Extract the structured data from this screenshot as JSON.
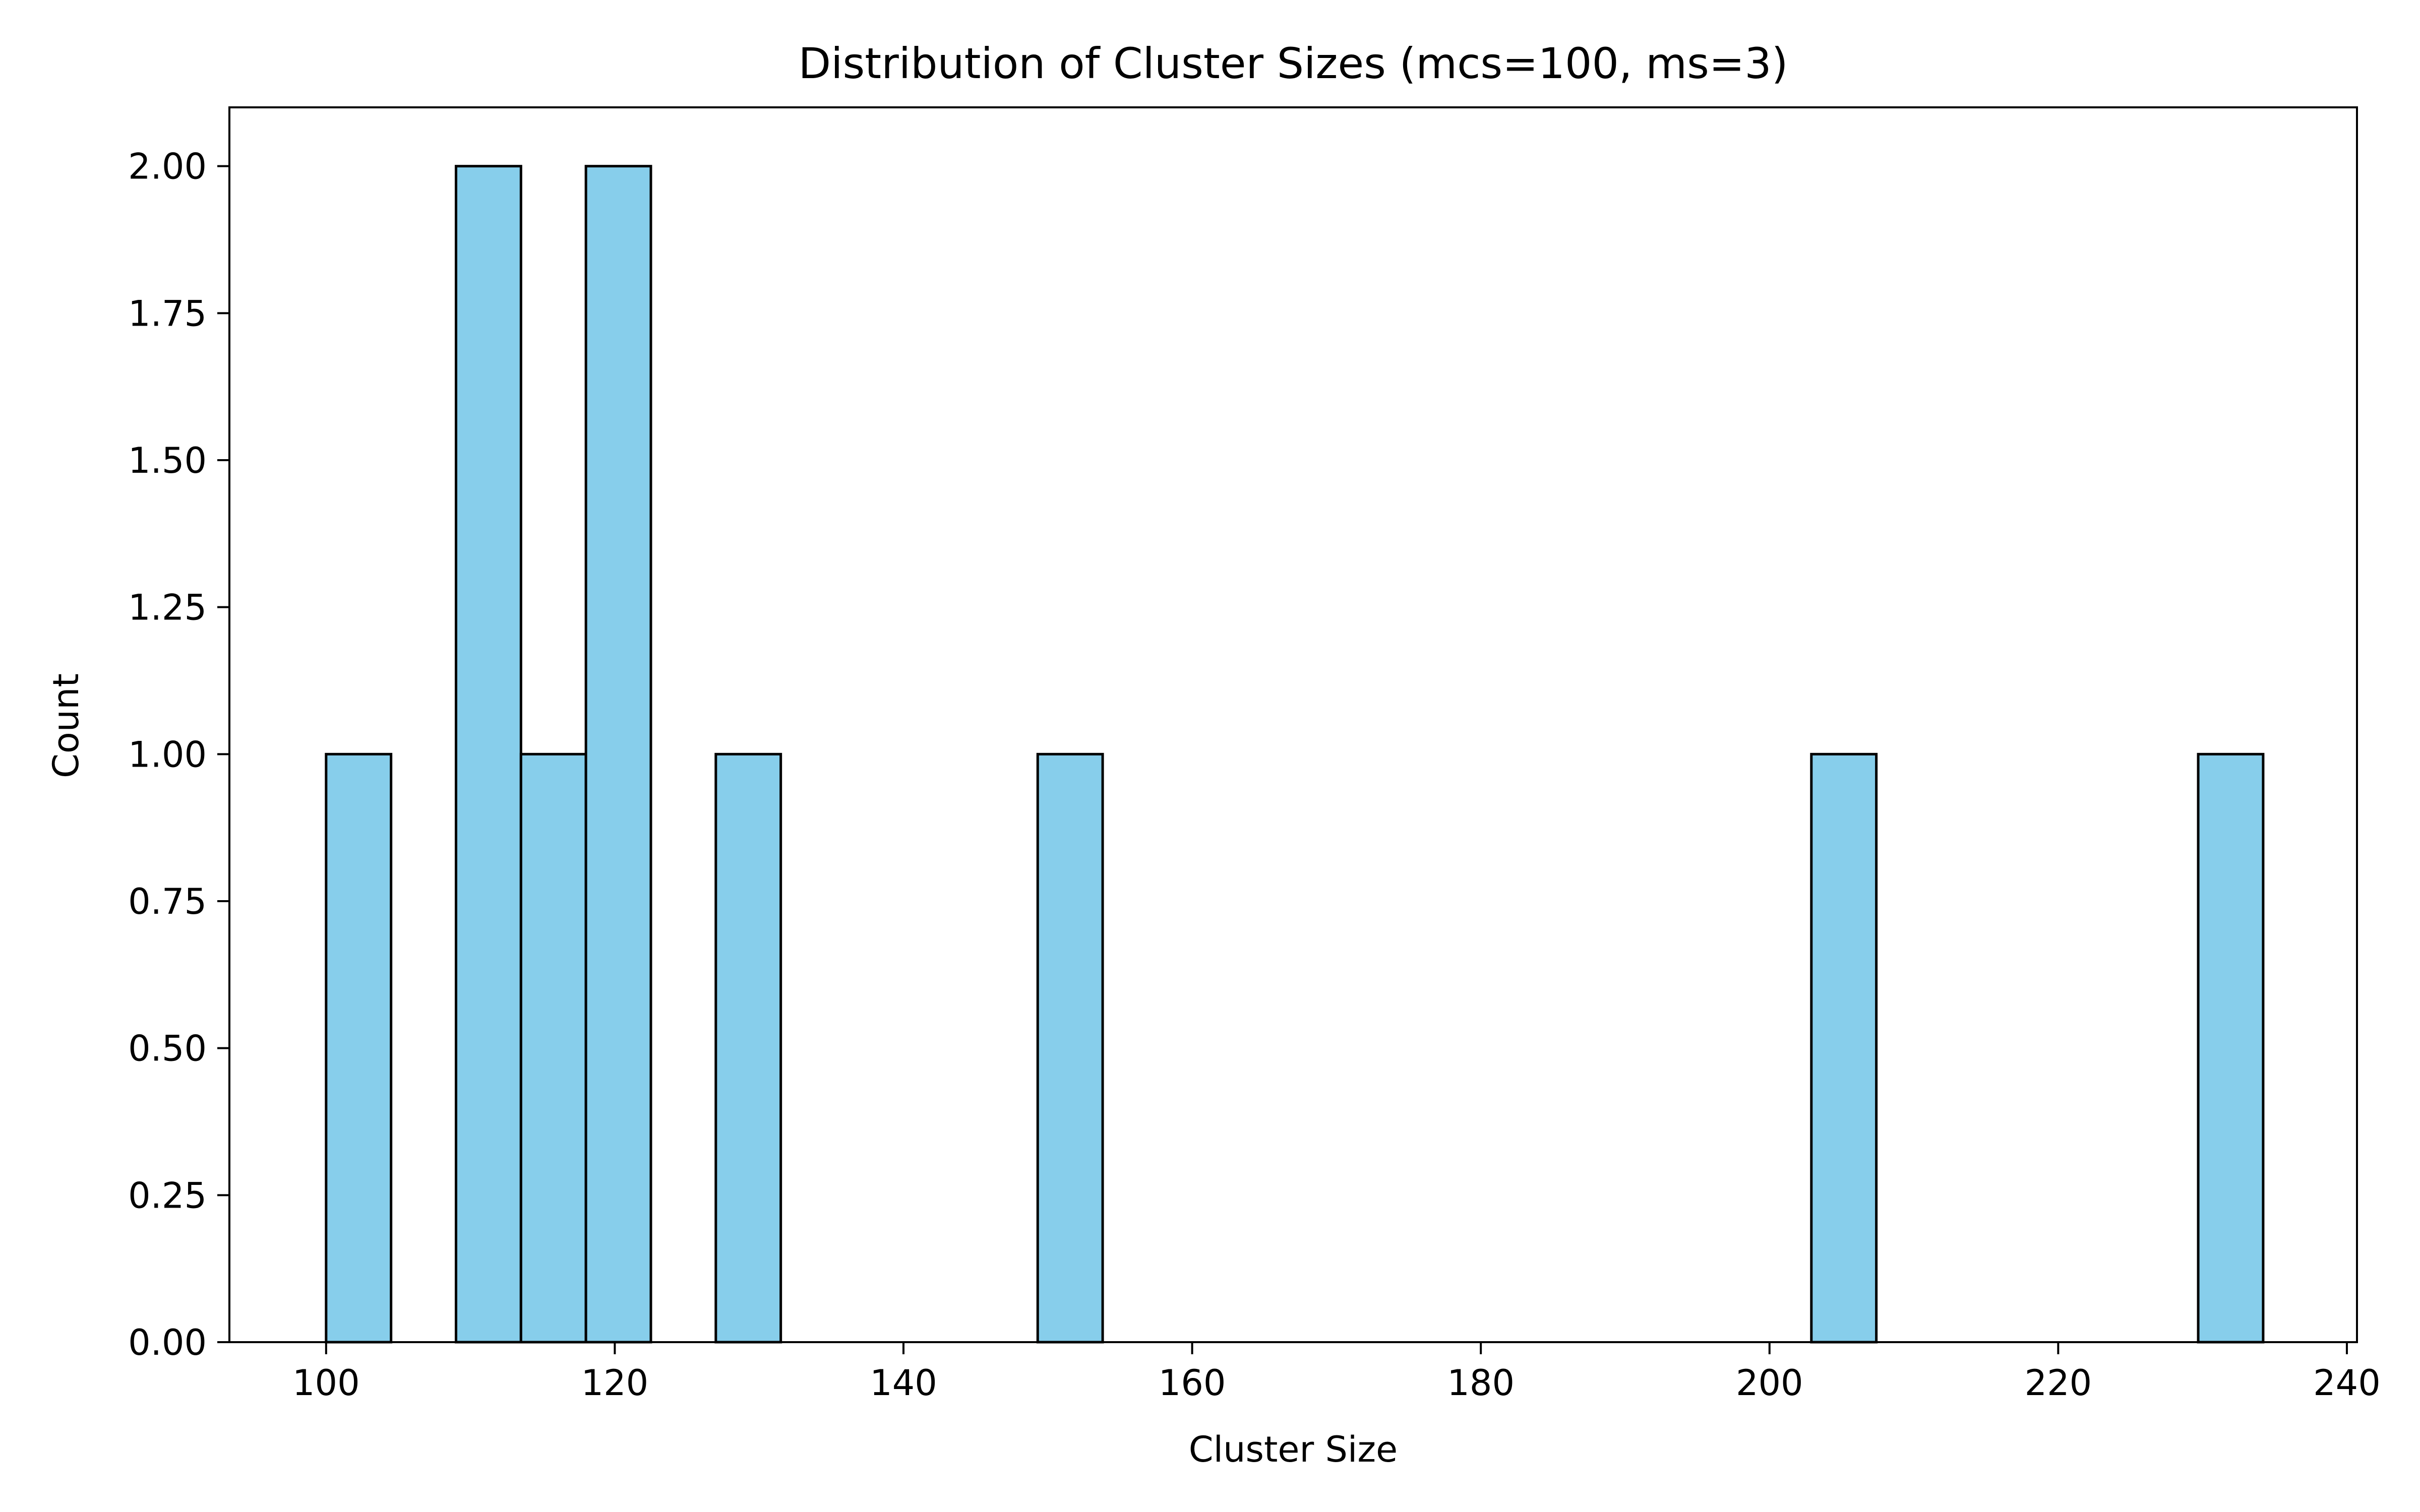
{
  "chart_data": {
    "type": "bar",
    "title": "Distribution of Cluster Sizes (mcs=100, ms=3)",
    "xlabel": "Cluster Size",
    "ylabel": "Count",
    "xlim": [
      93.3,
      240.7
    ],
    "ylim": [
      0,
      2.1
    ],
    "x_ticks": [
      "100",
      "120",
      "140",
      "160",
      "180",
      "200",
      "220",
      "240"
    ],
    "y_ticks": [
      "0.00",
      "0.25",
      "0.50",
      "0.75",
      "1.00",
      "1.25",
      "1.50",
      "1.75",
      "2.00"
    ],
    "bins": [
      {
        "start": 100.0,
        "end": 104.5,
        "count": 1
      },
      {
        "start": 109.0,
        "end": 113.5,
        "count": 2
      },
      {
        "start": 113.5,
        "end": 118.0,
        "count": 1
      },
      {
        "start": 118.0,
        "end": 122.5,
        "count": 2
      },
      {
        "start": 127.0,
        "end": 131.5,
        "count": 1
      },
      {
        "start": 149.3,
        "end": 153.8,
        "count": 1
      },
      {
        "start": 202.9,
        "end": 207.4,
        "count": 1
      },
      {
        "start": 229.7,
        "end": 234.2,
        "count": 1
      }
    ],
    "grid": false,
    "bar_color": "#87CEEB",
    "edge_color": "#000000"
  }
}
